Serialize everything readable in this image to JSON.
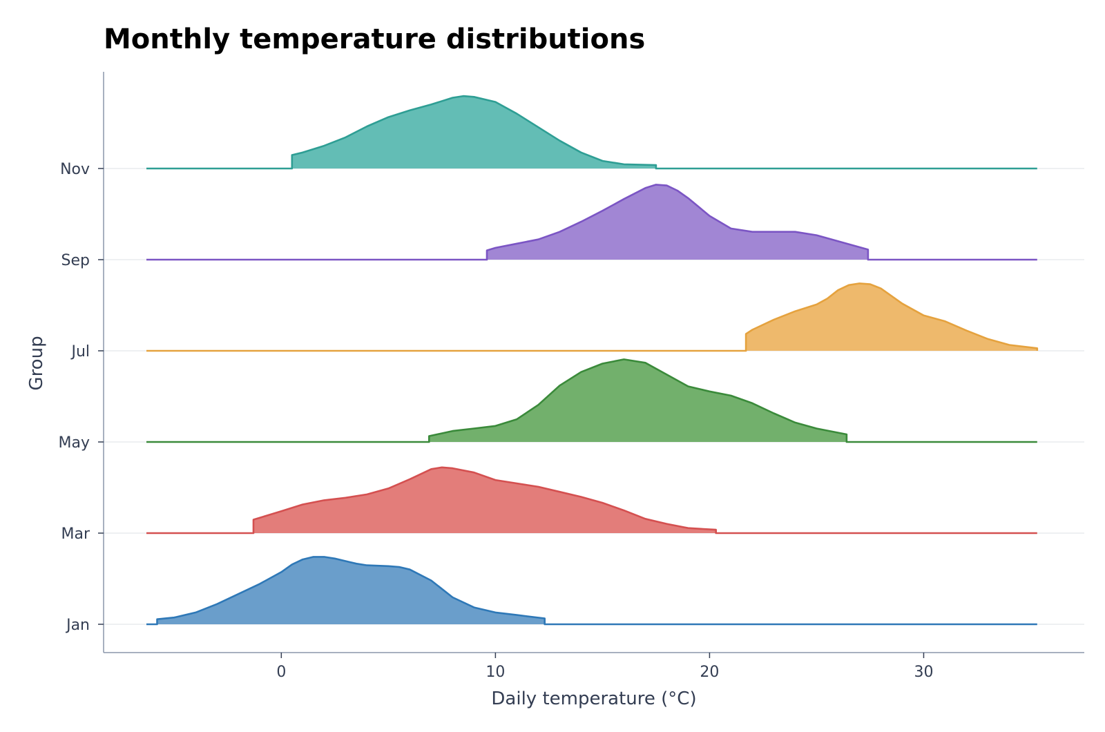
{
  "chart_data": {
    "type": "area",
    "subtype": "ridgeline",
    "title": "Monthly temperature distributions",
    "xlabel": "Daily temperature (°C)",
    "ylabel": "Group",
    "xlim": [
      -8.3,
      37.5
    ],
    "x_ticks": [
      0,
      10,
      20,
      30
    ],
    "grid": "horizontal baselines only",
    "legend": "none",
    "series": [
      {
        "name": "Jan",
        "color": "#2e78b7",
        "fill": "#6a9ecb",
        "range": [
          -5.8,
          12.3
        ],
        "points": [
          [
            -5.8,
            0.06
          ],
          [
            -5,
            0.08
          ],
          [
            -4,
            0.14
          ],
          [
            -3,
            0.24
          ],
          [
            -2,
            0.36
          ],
          [
            -1,
            0.48
          ],
          [
            0,
            0.62
          ],
          [
            0.5,
            0.71
          ],
          [
            1,
            0.77
          ],
          [
            1.5,
            0.8
          ],
          [
            2,
            0.8
          ],
          [
            2.5,
            0.78
          ],
          [
            3,
            0.75
          ],
          [
            3.5,
            0.72
          ],
          [
            4,
            0.7
          ],
          [
            5,
            0.69
          ],
          [
            5.5,
            0.68
          ],
          [
            6,
            0.65
          ],
          [
            7,
            0.52
          ],
          [
            8,
            0.32
          ],
          [
            9,
            0.2
          ],
          [
            10,
            0.14
          ],
          [
            11,
            0.11
          ],
          [
            12.3,
            0.07
          ]
        ]
      },
      {
        "name": "Mar",
        "color": "#d45050",
        "fill": "#e37d7a",
        "range": [
          -1.3,
          20.3
        ],
        "points": [
          [
            -1.3,
            0.16
          ],
          [
            0,
            0.26
          ],
          [
            1,
            0.34
          ],
          [
            2,
            0.39
          ],
          [
            3,
            0.42
          ],
          [
            4,
            0.46
          ],
          [
            5,
            0.53
          ],
          [
            6,
            0.64
          ],
          [
            7,
            0.76
          ],
          [
            7.5,
            0.78
          ],
          [
            8,
            0.77
          ],
          [
            9,
            0.72
          ],
          [
            10,
            0.63
          ],
          [
            11,
            0.59
          ],
          [
            12,
            0.55
          ],
          [
            13,
            0.49
          ],
          [
            14,
            0.43
          ],
          [
            15,
            0.36
          ],
          [
            16,
            0.27
          ],
          [
            17,
            0.17
          ],
          [
            18,
            0.11
          ],
          [
            19,
            0.06
          ],
          [
            20.3,
            0.04
          ]
        ]
      },
      {
        "name": "May",
        "color": "#3a8a3a",
        "fill": "#72b06c",
        "range": [
          6.9,
          26.4
        ],
        "points": [
          [
            6.9,
            0.07
          ],
          [
            8,
            0.13
          ],
          [
            9,
            0.16
          ],
          [
            10,
            0.19
          ],
          [
            11,
            0.27
          ],
          [
            12,
            0.44
          ],
          [
            13,
            0.67
          ],
          [
            14,
            0.83
          ],
          [
            15,
            0.93
          ],
          [
            16,
            0.98
          ],
          [
            17,
            0.94
          ],
          [
            18,
            0.8
          ],
          [
            19,
            0.66
          ],
          [
            20,
            0.6
          ],
          [
            21,
            0.55
          ],
          [
            22,
            0.46
          ],
          [
            23,
            0.34
          ],
          [
            24,
            0.23
          ],
          [
            25,
            0.16
          ],
          [
            26.4,
            0.09
          ]
        ]
      },
      {
        "name": "Jul",
        "color": "#e5a23e",
        "fill": "#eeb96c",
        "range": [
          21.7,
          35.3
        ],
        "points": [
          [
            21.7,
            0.2
          ],
          [
            22,
            0.25
          ],
          [
            23,
            0.37
          ],
          [
            24,
            0.47
          ],
          [
            25,
            0.55
          ],
          [
            25.5,
            0.62
          ],
          [
            26,
            0.72
          ],
          [
            26.5,
            0.78
          ],
          [
            27,
            0.8
          ],
          [
            27.5,
            0.79
          ],
          [
            28,
            0.74
          ],
          [
            29,
            0.56
          ],
          [
            30,
            0.42
          ],
          [
            31,
            0.35
          ],
          [
            32,
            0.24
          ],
          [
            33,
            0.14
          ],
          [
            34,
            0.07
          ],
          [
            35.3,
            0.03
          ]
        ]
      },
      {
        "name": "Sep",
        "color": "#7b55c4",
        "fill": "#a186d4",
        "range": [
          9.6,
          27.4
        ],
        "points": [
          [
            9.6,
            0.11
          ],
          [
            10,
            0.14
          ],
          [
            11,
            0.19
          ],
          [
            12,
            0.24
          ],
          [
            13,
            0.33
          ],
          [
            14,
            0.45
          ],
          [
            15,
            0.58
          ],
          [
            16,
            0.72
          ],
          [
            17,
            0.85
          ],
          [
            17.5,
            0.89
          ],
          [
            18,
            0.88
          ],
          [
            18.5,
            0.82
          ],
          [
            19,
            0.73
          ],
          [
            20,
            0.52
          ],
          [
            21,
            0.37
          ],
          [
            22,
            0.33
          ],
          [
            23,
            0.33
          ],
          [
            24,
            0.33
          ],
          [
            25,
            0.29
          ],
          [
            26,
            0.22
          ],
          [
            27.4,
            0.12
          ]
        ]
      },
      {
        "name": "Nov",
        "color": "#2e9e94",
        "fill": "#63bdb5",
        "range": [
          0.5,
          17.5
        ],
        "points": [
          [
            0.5,
            0.16
          ],
          [
            1,
            0.19
          ],
          [
            2,
            0.27
          ],
          [
            3,
            0.37
          ],
          [
            4,
            0.5
          ],
          [
            5,
            0.61
          ],
          [
            6,
            0.69
          ],
          [
            7,
            0.76
          ],
          [
            8,
            0.84
          ],
          [
            8.5,
            0.86
          ],
          [
            9,
            0.85
          ],
          [
            10,
            0.79
          ],
          [
            11,
            0.65
          ],
          [
            12,
            0.49
          ],
          [
            13,
            0.33
          ],
          [
            14,
            0.19
          ],
          [
            15,
            0.09
          ],
          [
            16,
            0.05
          ],
          [
            17.5,
            0.04
          ]
        ]
      }
    ]
  }
}
